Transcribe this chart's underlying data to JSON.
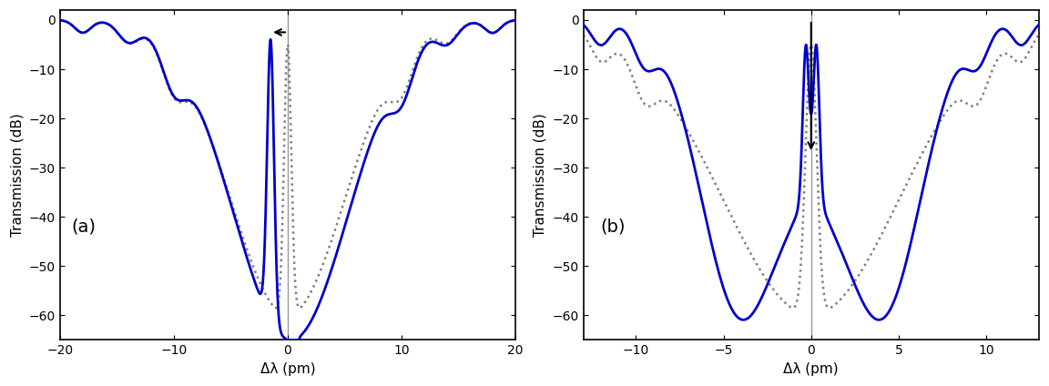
{
  "fig_width": 11.52,
  "fig_height": 4.24,
  "dpi": 100,
  "background_color": "#ffffff",
  "plot_a": {
    "xlim": [
      -20,
      20
    ],
    "ylim": [
      -65,
      2
    ],
    "xlabel": "Δλ (pm)",
    "ylabel": "Transmission (dB)",
    "label": "(a)",
    "yticks": [
      0,
      -10,
      -20,
      -30,
      -40,
      -50,
      -60
    ],
    "xticks": [
      -20,
      -10,
      0,
      10,
      20
    ]
  },
  "plot_b": {
    "xlim": [
      -13,
      13
    ],
    "ylim": [
      -65,
      2
    ],
    "xlabel": "Δλ (pm)",
    "ylabel": "Transmission (dB)",
    "label": "(b)",
    "yticks": [
      0,
      -10,
      -20,
      -30,
      -40,
      -50,
      -60
    ],
    "xticks": [
      -10,
      -5,
      0,
      5,
      10
    ]
  },
  "blue_color": "#0000cc",
  "dotted_color": "#808080",
  "arrow_color": "#000000",
  "line_gray": "#999999"
}
